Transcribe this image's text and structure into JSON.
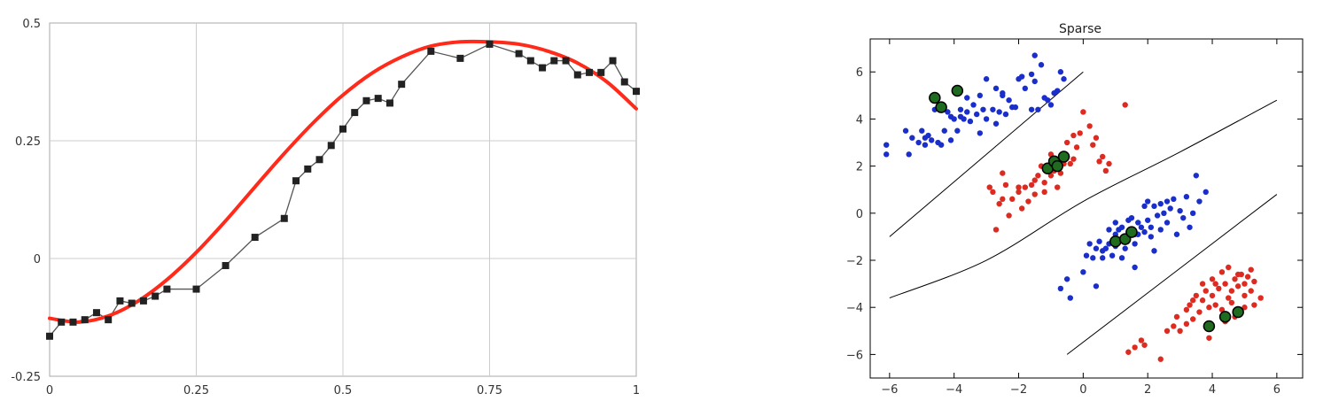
{
  "chart_data": [
    {
      "type": "line",
      "title": "",
      "xlabel": "",
      "ylabel": "",
      "xlim": [
        0,
        1
      ],
      "ylim": [
        -0.25,
        0.5
      ],
      "grid": true,
      "xticks": [
        0,
        0.25,
        0.5,
        0.75,
        1
      ],
      "xtick_labels": [
        "0",
        "0.25",
        "0.5",
        "0.75",
        "1"
      ],
      "yticks": [
        -0.25,
        0,
        0.25,
        0.5
      ],
      "ytick_labels": [
        "-0.25",
        "0",
        "0.25",
        "0.5"
      ],
      "colors": {
        "fit": "#ff2a1a",
        "samples": "#222222",
        "grid": "#cccccc"
      },
      "series": [
        {
          "kind": "samples",
          "marker": "square",
          "x": [
            0,
            0.02,
            0.04,
            0.06,
            0.08,
            0.1,
            0.12,
            0.14,
            0.16,
            0.18,
            0.2,
            0.25,
            0.3,
            0.35,
            0.4,
            0.42,
            0.44,
            0.46,
            0.48,
            0.5,
            0.52,
            0.54,
            0.56,
            0.58,
            0.6,
            0.65,
            0.7,
            0.75,
            0.8,
            0.82,
            0.84,
            0.86,
            0.88,
            0.9,
            0.92,
            0.94,
            0.96,
            0.98,
            1.0
          ],
          "y": [
            -0.165,
            -0.135,
            -0.135,
            -0.13,
            -0.115,
            -0.13,
            -0.09,
            -0.095,
            -0.09,
            -0.08,
            -0.065,
            -0.065,
            -0.015,
            0.045,
            0.085,
            0.165,
            0.19,
            0.21,
            0.24,
            0.275,
            0.31,
            0.335,
            0.34,
            0.33,
            0.37,
            0.44,
            0.425,
            0.455,
            0.435,
            0.42,
            0.405,
            0.42,
            0.42,
            0.39,
            0.395,
            0.395,
            0.42,
            0.375,
            0.355
          ]
        },
        {
          "kind": "fit",
          "x": [
            0,
            0.05,
            0.1,
            0.15,
            0.2,
            0.25,
            0.3,
            0.35,
            0.4,
            0.45,
            0.5,
            0.55,
            0.6,
            0.65,
            0.7,
            0.75,
            0.8,
            0.85,
            0.9,
            0.95,
            1.0
          ],
          "y": [
            -0.127,
            -0.135,
            -0.122,
            -0.091,
            -0.045,
            0.013,
            0.08,
            0.152,
            0.223,
            0.289,
            0.347,
            0.394,
            0.428,
            0.451,
            0.46,
            0.46,
            0.455,
            0.44,
            0.415,
            0.375,
            0.318
          ]
        }
      ]
    },
    {
      "type": "scatter",
      "title": "Sparse",
      "xlabel": "",
      "ylabel": "",
      "xlim": [
        -6.6,
        6.8
      ],
      "ylim": [
        -7,
        7.4
      ],
      "xticks": [
        -6,
        -4,
        -2,
        0,
        2,
        4,
        6
      ],
      "xtick_labels": [
        "−6",
        "−4",
        "−2",
        "0",
        "2",
        "4",
        "6"
      ],
      "yticks": [
        -6,
        -4,
        -2,
        0,
        2,
        4,
        6
      ],
      "ytick_labels": [
        "−6",
        "−4",
        "−2",
        "0",
        "2",
        "4",
        "6"
      ],
      "colors": {
        "class_a": "#1a2ecc",
        "class_b": "#dd2b22",
        "support": "#1f6b1f",
        "boundary": "#000000"
      },
      "series": [
        {
          "class": "blue",
          "points": [
            [
              -6.1,
              2.9
            ],
            [
              -6.1,
              2.5
            ],
            [
              -5.5,
              3.5
            ],
            [
              -5.3,
              3.2
            ],
            [
              -5.4,
              2.5
            ],
            [
              -5.1,
              3.0
            ],
            [
              -5.0,
              3.5
            ],
            [
              -4.9,
              3.2
            ],
            [
              -4.9,
              2.9
            ],
            [
              -4.8,
              3.3
            ],
            [
              -4.7,
              3.1
            ],
            [
              -4.5,
              3.0
            ],
            [
              -4.4,
              2.9
            ],
            [
              -4.6,
              4.4
            ],
            [
              -4.4,
              4.6
            ],
            [
              -4.2,
              4.3
            ],
            [
              -4.1,
              4.1
            ],
            [
              -4.0,
              4.0
            ],
            [
              -3.8,
              4.4
            ],
            [
              -3.8,
              4.1
            ],
            [
              -3.7,
              4.0
            ],
            [
              -3.6,
              4.3
            ],
            [
              -3.5,
              3.9
            ],
            [
              -3.4,
              4.6
            ],
            [
              -3.3,
              4.2
            ],
            [
              -3.2,
              3.4
            ],
            [
              -3.1,
              4.4
            ],
            [
              -3.0,
              4.0
            ],
            [
              -2.8,
              4.4
            ],
            [
              -2.7,
              5.3
            ],
            [
              -2.6,
              4.3
            ],
            [
              -2.5,
              5.0
            ],
            [
              -2.4,
              4.2
            ],
            [
              -2.3,
              4.8
            ],
            [
              -2.1,
              4.5
            ],
            [
              -2.0,
              5.7
            ],
            [
              -1.9,
              5.8
            ],
            [
              -1.5,
              5.6
            ],
            [
              -1.2,
              4.9
            ],
            [
              -0.8,
              5.2
            ],
            [
              -0.6,
              5.7
            ],
            [
              -3.0,
              5.7
            ],
            [
              -3.9,
              3.5
            ],
            [
              -4.1,
              3.1
            ],
            [
              -1.6,
              4.4
            ],
            [
              -1.4,
              4.4
            ],
            [
              -1.0,
              4.6
            ],
            [
              -1.5,
              6.7
            ],
            [
              -1.1,
              4.8
            ],
            [
              -0.7,
              6.0
            ],
            [
              -2.5,
              5.1
            ],
            [
              -3.6,
              4.9
            ],
            [
              -3.2,
              5.0
            ],
            [
              -1.6,
              5.9
            ],
            [
              -1.8,
              5.3
            ],
            [
              -0.9,
              5.1
            ],
            [
              -1.3,
              6.3
            ],
            [
              -2.2,
              4.5
            ],
            [
              -4.3,
              3.5
            ],
            [
              -2.7,
              3.8
            ],
            [
              -0.7,
              -3.2
            ],
            [
              -0.5,
              -2.8
            ],
            [
              -0.4,
              -3.6
            ],
            [
              0.1,
              -1.8
            ],
            [
              0.2,
              -1.3
            ],
            [
              0.3,
              -1.9
            ],
            [
              0.4,
              -1.5
            ],
            [
              0.5,
              -1.2
            ],
            [
              0.6,
              -1.6
            ],
            [
              0.6,
              -1.9
            ],
            [
              0.8,
              -0.7
            ],
            [
              0.8,
              -1.3
            ],
            [
              0.9,
              -1.8
            ],
            [
              1.0,
              -0.9
            ],
            [
              1.0,
              -1.4
            ],
            [
              1.1,
              -1.2
            ],
            [
              1.1,
              -0.7
            ],
            [
              1.2,
              -0.6
            ],
            [
              1.3,
              -1.0
            ],
            [
              1.3,
              -1.5
            ],
            [
              1.4,
              -0.8
            ],
            [
              1.4,
              -0.3
            ],
            [
              1.5,
              -0.7
            ],
            [
              1.5,
              -0.2
            ],
            [
              1.6,
              -1.3
            ],
            [
              1.6,
              -0.9
            ],
            [
              1.7,
              -0.4
            ],
            [
              1.8,
              -0.6
            ],
            [
              1.9,
              -0.8
            ],
            [
              1.9,
              0.3
            ],
            [
              2.0,
              -0.3
            ],
            [
              2.1,
              -0.6
            ],
            [
              2.1,
              -1.0
            ],
            [
              2.2,
              0.3
            ],
            [
              2.3,
              -0.1
            ],
            [
              2.4,
              -0.7
            ],
            [
              2.4,
              0.4
            ],
            [
              2.5,
              0.0
            ],
            [
              2.6,
              -0.4
            ],
            [
              2.7,
              0.2
            ],
            [
              2.8,
              0.6
            ],
            [
              3.0,
              0.1
            ],
            [
              3.1,
              -0.2
            ],
            [
              3.2,
              0.7
            ],
            [
              3.4,
              0.0
            ],
            [
              3.6,
              0.5
            ],
            [
              3.8,
              0.9
            ],
            [
              3.5,
              1.6
            ],
            [
              2.2,
              -1.6
            ],
            [
              1.6,
              -2.3
            ],
            [
              0.0,
              -2.5
            ],
            [
              0.4,
              -3.1
            ],
            [
              1.0,
              -0.4
            ],
            [
              3.3,
              -0.6
            ],
            [
              2.6,
              0.5
            ],
            [
              1.7,
              -0.9
            ],
            [
              2.9,
              -0.9
            ],
            [
              1.2,
              -1.9
            ],
            [
              0.7,
              -1.5
            ],
            [
              2.0,
              0.5
            ]
          ]
        },
        {
          "class": "red",
          "points": [
            [
              -2.9,
              1.1
            ],
            [
              -2.8,
              0.9
            ],
            [
              -2.7,
              -0.7
            ],
            [
              -2.6,
              0.4
            ],
            [
              -2.5,
              1.7
            ],
            [
              -2.5,
              0.6
            ],
            [
              -2.4,
              1.2
            ],
            [
              -2.3,
              -0.1
            ],
            [
              -2.2,
              0.6
            ],
            [
              -2.0,
              0.9
            ],
            [
              -2.0,
              1.1
            ],
            [
              -1.9,
              0.2
            ],
            [
              -1.8,
              1.1
            ],
            [
              -1.7,
              0.5
            ],
            [
              -1.6,
              1.2
            ],
            [
              -1.5,
              1.4
            ],
            [
              -1.5,
              0.8
            ],
            [
              -1.4,
              1.6
            ],
            [
              -1.3,
              2.0
            ],
            [
              -1.2,
              1.3
            ],
            [
              -1.2,
              0.9
            ],
            [
              -1.1,
              1.9
            ],
            [
              -1.0,
              1.6
            ],
            [
              -1.0,
              2.5
            ],
            [
              -0.9,
              1.8
            ],
            [
              -0.8,
              2.2
            ],
            [
              -0.8,
              1.1
            ],
            [
              -0.7,
              1.7
            ],
            [
              -0.6,
              2.1
            ],
            [
              -0.5,
              2.4
            ],
            [
              -0.4,
              2.1
            ],
            [
              -0.3,
              3.3
            ],
            [
              -0.2,
              2.8
            ],
            [
              -0.1,
              3.4
            ],
            [
              0.0,
              4.3
            ],
            [
              0.2,
              3.7
            ],
            [
              0.3,
              2.9
            ],
            [
              0.5,
              2.2
            ],
            [
              0.6,
              2.4
            ],
            [
              0.7,
              1.8
            ],
            [
              0.8,
              2.1
            ],
            [
              1.3,
              4.6
            ],
            [
              0.4,
              3.2
            ],
            [
              -0.5,
              3.0
            ],
            [
              -0.3,
              2.3
            ],
            [
              2.4,
              -6.2
            ],
            [
              1.4,
              -5.9
            ],
            [
              1.6,
              -5.7
            ],
            [
              1.8,
              -5.4
            ],
            [
              1.9,
              -5.6
            ],
            [
              2.6,
              -5.0
            ],
            [
              2.8,
              -4.8
            ],
            [
              3.0,
              -5.0
            ],
            [
              3.2,
              -4.7
            ],
            [
              3.2,
              -4.1
            ],
            [
              3.3,
              -3.9
            ],
            [
              3.4,
              -4.5
            ],
            [
              3.5,
              -3.5
            ],
            [
              3.6,
              -4.2
            ],
            [
              3.7,
              -3.7
            ],
            [
              3.7,
              -3.0
            ],
            [
              3.8,
              -3.3
            ],
            [
              3.9,
              -4.0
            ],
            [
              4.0,
              -3.5
            ],
            [
              4.0,
              -2.8
            ],
            [
              4.1,
              -3.9
            ],
            [
              4.2,
              -3.2
            ],
            [
              4.3,
              -4.1
            ],
            [
              4.3,
              -2.5
            ],
            [
              4.4,
              -3.0
            ],
            [
              4.5,
              -3.6
            ],
            [
              4.5,
              -2.3
            ],
            [
              4.6,
              -3.3
            ],
            [
              4.7,
              -2.8
            ],
            [
              4.7,
              -4.4
            ],
            [
              4.8,
              -3.1
            ],
            [
              4.9,
              -2.6
            ],
            [
              5.0,
              -3.5
            ],
            [
              5.0,
              -3.0
            ],
            [
              5.1,
              -2.7
            ],
            [
              5.2,
              -3.3
            ],
            [
              5.2,
              -2.4
            ],
            [
              5.3,
              -3.9
            ],
            [
              5.3,
              -2.9
            ],
            [
              5.5,
              -3.6
            ],
            [
              4.4,
              -4.6
            ],
            [
              3.9,
              -5.3
            ],
            [
              4.1,
              -3.0
            ],
            [
              4.6,
              -3.8
            ],
            [
              5.0,
              -4.0
            ],
            [
              3.4,
              -3.7
            ],
            [
              2.9,
              -4.4
            ],
            [
              4.8,
              -2.6
            ]
          ]
        },
        {
          "class": "support",
          "points": [
            [
              -4.6,
              4.9
            ],
            [
              -3.9,
              5.2
            ],
            [
              -4.4,
              4.5
            ],
            [
              -1.1,
              1.9
            ],
            [
              -0.9,
              2.2
            ],
            [
              -0.8,
              2.0
            ],
            [
              -0.6,
              2.4
            ],
            [
              1.0,
              -1.2
            ],
            [
              1.3,
              -1.1
            ],
            [
              1.5,
              -0.8
            ],
            [
              3.9,
              -4.8
            ],
            [
              4.4,
              -4.4
            ],
            [
              4.8,
              -4.2
            ]
          ]
        }
      ],
      "boundaries": [
        {
          "x": [
            -6.0,
            0.0
          ],
          "y": [
            -1.0,
            6.0
          ]
        },
        {
          "x": [
            -6.0,
            -3.0,
            0.0,
            3.0,
            6.0
          ],
          "y": [
            -3.6,
            -2.0,
            0.5,
            2.6,
            4.8
          ]
        },
        {
          "x": [
            -0.5,
            6.0
          ],
          "y": [
            -6.0,
            0.8
          ]
        }
      ]
    }
  ]
}
